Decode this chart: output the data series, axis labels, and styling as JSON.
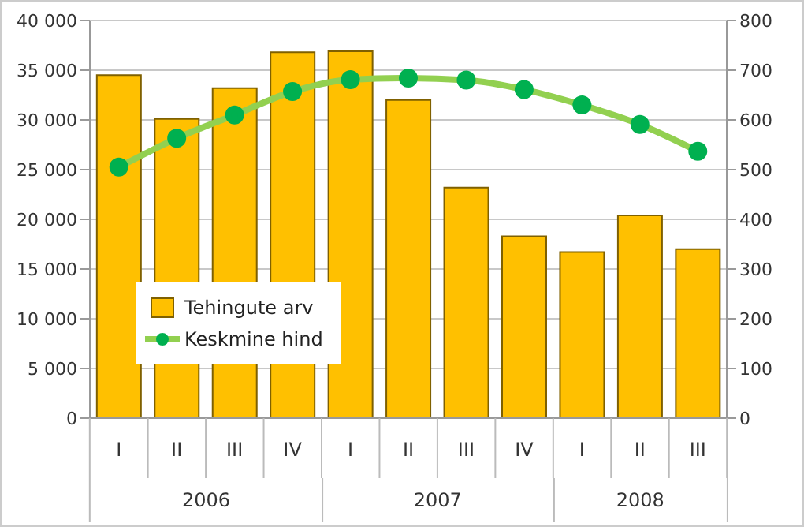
{
  "chart_data": {
    "type": "bar",
    "categories": [
      "I",
      "II",
      "III",
      "IV",
      "I",
      "II",
      "III",
      "IV",
      "I",
      "II",
      "III"
    ],
    "annotations": [
      "2006",
      "2007",
      "2008"
    ],
    "series": [
      {
        "name": "Tehingute arv",
        "color": "#ffc000",
        "values": [
          34500,
          30100,
          33200,
          36800,
          36900,
          32000,
          23200,
          18300,
          16700,
          20400,
          17000
        ]
      },
      {
        "name": "Keskmine hind",
        "type": "line",
        "axis": "y2",
        "color": "#92d050",
        "values": [
          505,
          563,
          610,
          657,
          681,
          684,
          680,
          661,
          630,
          591,
          537
        ]
      }
    ],
    "ylim": [
      0,
      40000
    ],
    "yticks": [
      0,
      5000,
      10000,
      15000,
      20000,
      25000,
      30000,
      35000,
      40000
    ],
    "y2lim": [
      0,
      800
    ],
    "y2ticks": [
      0,
      100,
      200,
      300,
      400,
      500,
      600,
      700,
      800
    ],
    "grid": "y",
    "legend": "left",
    "marker": "circle",
    "line_style": "solid"
  }
}
